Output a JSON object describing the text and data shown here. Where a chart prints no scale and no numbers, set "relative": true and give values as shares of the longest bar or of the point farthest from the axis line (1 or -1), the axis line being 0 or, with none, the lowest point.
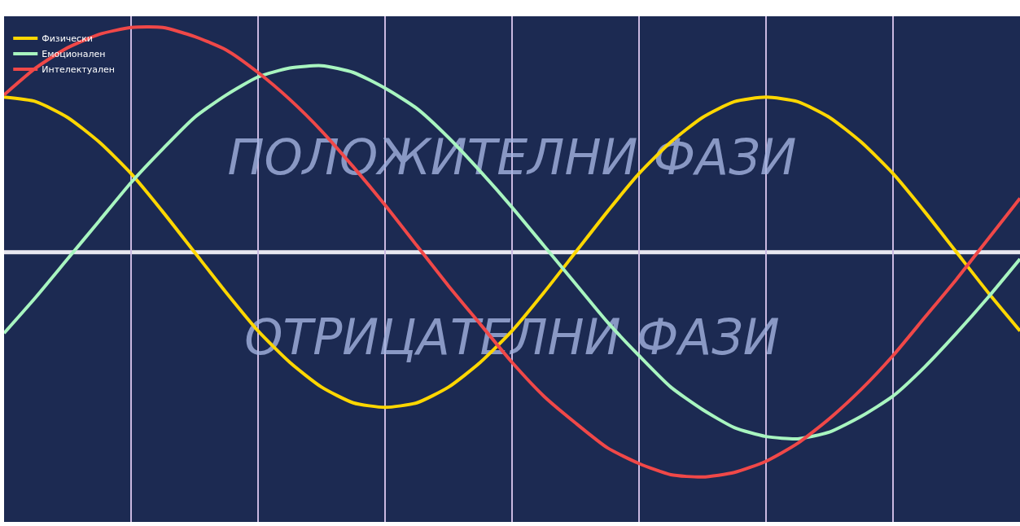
{
  "chart_data": {
    "type": "line",
    "relative": true,
    "grid": "x",
    "legend": "top left",
    "marker": "none",
    "line_style": "solid",
    "categories": [
      null,
      null,
      null,
      null,
      null,
      null,
      null,
      null,
      null,
      null,
      null,
      null,
      null,
      null,
      null,
      null,
      null,
      null,
      null,
      null,
      null,
      null,
      null,
      null,
      null,
      null,
      null,
      null,
      null,
      null,
      null,
      null,
      null
    ],
    "series": [
      {
        "name": "Физически",
        "color": "#ffd700",
        "values": [
          0.69,
          0.67,
          0.6,
          0.49,
          0.35,
          0.18,
          0,
          -0.18,
          -0.35,
          -0.49,
          -0.6,
          -0.67,
          -0.69,
          -0.67,
          -0.6,
          -0.49,
          -0.35,
          -0.18,
          0,
          0.18,
          0.35,
          0.49,
          0.6,
          0.67,
          0.69,
          0.67,
          0.6,
          0.49,
          0.35,
          0.18,
          0,
          -0.18,
          -0.35
        ]
      },
      {
        "name": "Емоционален",
        "color": "#a8f5c0",
        "values": [
          -0.36,
          -0.2,
          -0.03,
          0.14,
          0.31,
          0.46,
          0.6,
          0.7,
          0.78,
          0.82,
          0.83,
          0.8,
          0.73,
          0.64,
          0.51,
          0.36,
          0.2,
          0.03,
          -0.14,
          -0.31,
          -0.46,
          -0.6,
          -0.7,
          -0.78,
          -0.82,
          -0.83,
          -0.8,
          -0.73,
          -0.64,
          -0.51,
          -0.36,
          -0.2,
          -0.03
        ]
      },
      {
        "name": "Интелектуален",
        "color": "#f04848",
        "values": [
          0.7,
          0.82,
          0.91,
          0.97,
          1.0,
          1.0,
          0.96,
          0.9,
          0.8,
          0.68,
          0.54,
          0.38,
          0.21,
          0.03,
          -0.15,
          -0.32,
          -0.49,
          -0.64,
          -0.76,
          -0.87,
          -0.94,
          -0.99,
          -1.0,
          -0.98,
          -0.93,
          -0.85,
          -0.74,
          -0.61,
          -0.46,
          -0.29,
          -0.12,
          0.06,
          0.24
        ]
      }
    ],
    "annotations": [
      "ПОЛОЖИТЕЛНИ ФАЗИ",
      "ОТРИЦАТЕЛНИ ФАЗИ"
    ]
  }
}
